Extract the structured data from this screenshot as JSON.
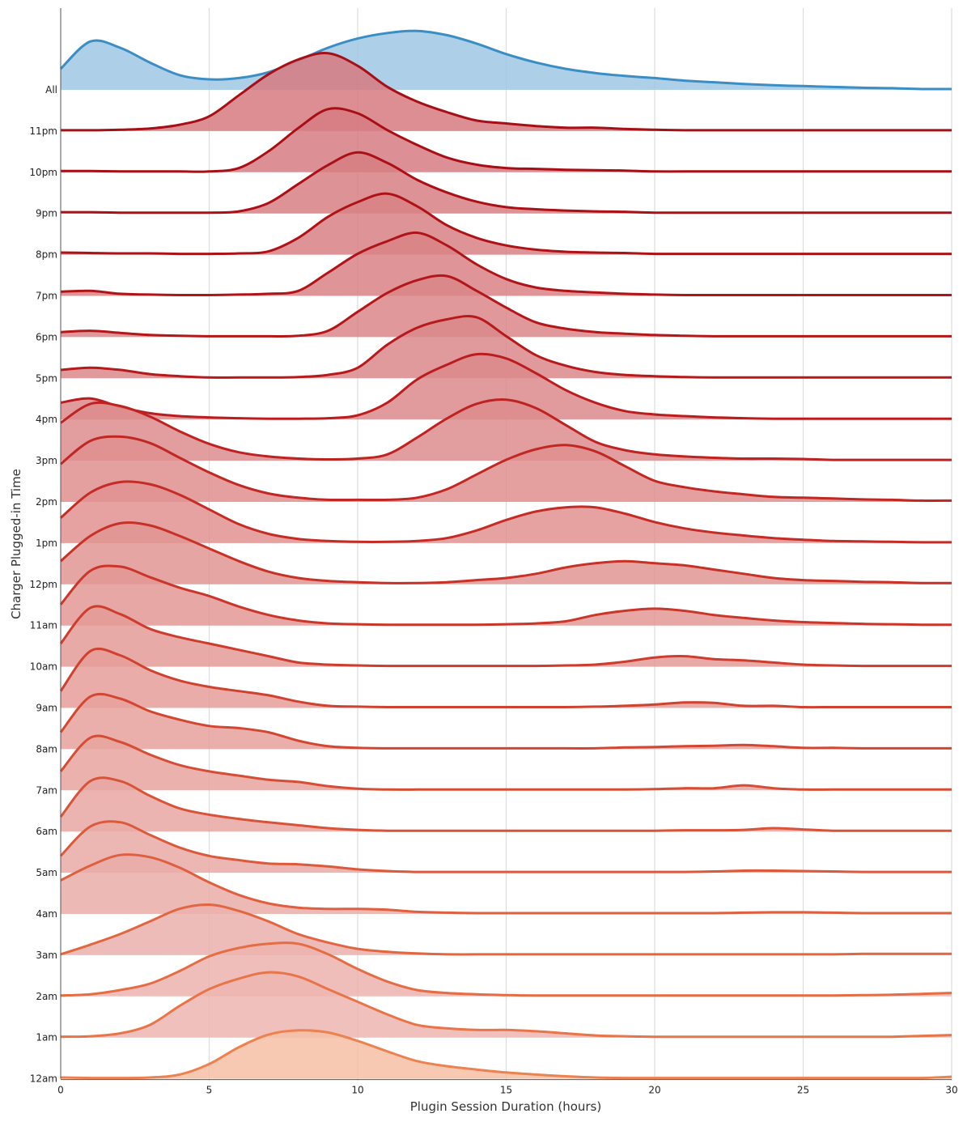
{
  "chart_data": {
    "type": "ridgeline",
    "xlabel": "Plugin Session Duration (hours)",
    "ylabel": "Charger Plugged-in Time",
    "xlim": [
      0,
      30
    ],
    "x_ticks": [
      0,
      5,
      10,
      15,
      20,
      25,
      30
    ],
    "grid": "vertical",
    "x": [
      0,
      1,
      2,
      3,
      4,
      5,
      6,
      7,
      8,
      9,
      10,
      11,
      12,
      13,
      14,
      15,
      16,
      17,
      18,
      19,
      20,
      21,
      22,
      23,
      24,
      25,
      26,
      27,
      28,
      29,
      30
    ],
    "series": [
      {
        "name": "All",
        "color": "#3a8ec4",
        "fill": "#9fc7e3",
        "values": [
          0.5,
          1.15,
          1.0,
          0.65,
          0.35,
          0.25,
          0.28,
          0.42,
          0.7,
          1.0,
          1.22,
          1.35,
          1.4,
          1.3,
          1.1,
          0.85,
          0.65,
          0.5,
          0.4,
          0.33,
          0.28,
          0.22,
          0.18,
          0.14,
          0.11,
          0.09,
          0.07,
          0.05,
          0.04,
          0.02,
          0.02
        ]
      },
      {
        "name": "11pm",
        "color": "#a50f15",
        "fill": "#d67a80",
        "values": [
          0.02,
          0.02,
          0.03,
          0.06,
          0.15,
          0.35,
          0.85,
          1.35,
          1.7,
          1.85,
          1.55,
          1.05,
          0.7,
          0.45,
          0.25,
          0.18,
          0.12,
          0.08,
          0.08,
          0.05,
          0.03,
          0.02,
          0.02,
          0.02,
          0.02,
          0.02,
          0.02,
          0.02,
          0.02,
          0.02,
          0.02
        ]
      },
      {
        "name": "10pm",
        "color": "#a80f15",
        "fill": "#d67d82",
        "values": [
          0.03,
          0.03,
          0.02,
          0.02,
          0.02,
          0.02,
          0.1,
          0.5,
          1.05,
          1.5,
          1.4,
          1.0,
          0.65,
          0.35,
          0.18,
          0.1,
          0.08,
          0.06,
          0.05,
          0.04,
          0.02,
          0.02,
          0.02,
          0.02,
          0.02,
          0.02,
          0.02,
          0.02,
          0.02,
          0.02,
          0.02
        ]
      },
      {
        "name": "9pm",
        "color": "#aa1016",
        "fill": "#d77f83",
        "values": [
          0.03,
          0.03,
          0.02,
          0.02,
          0.02,
          0.02,
          0.05,
          0.25,
          0.7,
          1.15,
          1.45,
          1.2,
          0.8,
          0.5,
          0.28,
          0.15,
          0.1,
          0.07,
          0.05,
          0.04,
          0.02,
          0.02,
          0.02,
          0.02,
          0.02,
          0.02,
          0.02,
          0.02,
          0.02,
          0.02,
          0.02
        ]
      },
      {
        "name": "8pm",
        "color": "#ae1217",
        "fill": "#d88184",
        "values": [
          0.05,
          0.04,
          0.03,
          0.03,
          0.02,
          0.02,
          0.03,
          0.08,
          0.4,
          0.9,
          1.25,
          1.45,
          1.15,
          0.7,
          0.4,
          0.22,
          0.12,
          0.07,
          0.05,
          0.04,
          0.02,
          0.02,
          0.02,
          0.02,
          0.02,
          0.02,
          0.02,
          0.02,
          0.02,
          0.02,
          0.02
        ]
      },
      {
        "name": "7pm",
        "color": "#b11418",
        "fill": "#d98386",
        "values": [
          0.1,
          0.12,
          0.05,
          0.03,
          0.02,
          0.02,
          0.03,
          0.05,
          0.12,
          0.55,
          1.0,
          1.3,
          1.5,
          1.2,
          0.75,
          0.4,
          0.2,
          0.12,
          0.08,
          0.05,
          0.03,
          0.02,
          0.02,
          0.02,
          0.02,
          0.02,
          0.02,
          0.02,
          0.02,
          0.02,
          0.02
        ]
      },
      {
        "name": "6pm",
        "color": "#b4171a",
        "fill": "#da8688",
        "values": [
          0.12,
          0.15,
          0.1,
          0.05,
          0.03,
          0.02,
          0.02,
          0.02,
          0.03,
          0.15,
          0.6,
          1.05,
          1.35,
          1.45,
          1.1,
          0.7,
          0.35,
          0.2,
          0.12,
          0.08,
          0.05,
          0.03,
          0.02,
          0.02,
          0.02,
          0.02,
          0.02,
          0.02,
          0.02,
          0.02,
          0.02
        ]
      },
      {
        "name": "5pm",
        "color": "#b71a1c",
        "fill": "#db888a",
        "values": [
          0.2,
          0.25,
          0.2,
          0.1,
          0.05,
          0.02,
          0.02,
          0.02,
          0.03,
          0.08,
          0.25,
          0.8,
          1.2,
          1.4,
          1.45,
          1.0,
          0.55,
          0.3,
          0.15,
          0.08,
          0.05,
          0.03,
          0.02,
          0.02,
          0.02,
          0.02,
          0.02,
          0.02,
          0.02,
          0.02,
          0.02
        ]
      },
      {
        "name": "4pm",
        "color": "#bb1d1f",
        "fill": "#dc8a8b",
        "values": [
          0.4,
          0.5,
          0.3,
          0.15,
          0.08,
          0.05,
          0.03,
          0.02,
          0.02,
          0.03,
          0.1,
          0.4,
          0.95,
          1.3,
          1.55,
          1.45,
          1.1,
          0.7,
          0.4,
          0.2,
          0.12,
          0.08,
          0.05,
          0.03,
          0.02,
          0.02,
          0.02,
          0.02,
          0.02,
          0.02,
          0.02
        ]
      },
      {
        "name": "3pm",
        "color": "#be2221",
        "fill": "#dd8c8d",
        "values": [
          0.9,
          1.35,
          1.3,
          1.05,
          0.7,
          0.4,
          0.2,
          0.1,
          0.05,
          0.03,
          0.05,
          0.15,
          0.55,
          1.0,
          1.35,
          1.45,
          1.25,
          0.85,
          0.45,
          0.25,
          0.15,
          0.1,
          0.07,
          0.05,
          0.05,
          0.04,
          0.02,
          0.02,
          0.02,
          0.02,
          0.02
        ]
      },
      {
        "name": "2pm",
        "color": "#c12723",
        "fill": "#df8f8e",
        "values": [
          0.9,
          1.45,
          1.55,
          1.4,
          1.05,
          0.7,
          0.4,
          0.2,
          0.1,
          0.05,
          0.05,
          0.05,
          0.1,
          0.3,
          0.65,
          1.0,
          1.25,
          1.35,
          1.2,
          0.85,
          0.5,
          0.35,
          0.25,
          0.18,
          0.12,
          0.1,
          0.08,
          0.06,
          0.05,
          0.03,
          0.03
        ]
      },
      {
        "name": "1pm",
        "color": "#c42c25",
        "fill": "#e09290",
        "values": [
          0.6,
          1.2,
          1.45,
          1.4,
          1.15,
          0.8,
          0.45,
          0.22,
          0.1,
          0.05,
          0.03,
          0.03,
          0.05,
          0.12,
          0.3,
          0.55,
          0.75,
          0.85,
          0.85,
          0.7,
          0.5,
          0.35,
          0.25,
          0.18,
          0.12,
          0.08,
          0.05,
          0.04,
          0.03,
          0.02,
          0.02
        ]
      },
      {
        "name": "12pm",
        "color": "#c73127",
        "fill": "#e19592",
        "values": [
          0.55,
          1.15,
          1.45,
          1.4,
          1.15,
          0.85,
          0.55,
          0.3,
          0.15,
          0.08,
          0.05,
          0.03,
          0.03,
          0.05,
          0.1,
          0.15,
          0.25,
          0.4,
          0.5,
          0.55,
          0.5,
          0.45,
          0.35,
          0.25,
          0.15,
          0.1,
          0.08,
          0.06,
          0.05,
          0.03,
          0.03
        ]
      },
      {
        "name": "11am",
        "color": "#ca3629",
        "fill": "#e39895",
        "values": [
          0.5,
          1.3,
          1.4,
          1.15,
          0.9,
          0.7,
          0.45,
          0.25,
          0.12,
          0.05,
          0.03,
          0.02,
          0.02,
          0.02,
          0.02,
          0.03,
          0.05,
          0.1,
          0.25,
          0.35,
          0.4,
          0.35,
          0.25,
          0.18,
          0.12,
          0.08,
          0.06,
          0.04,
          0.03,
          0.02,
          0.02
        ]
      },
      {
        "name": "10am",
        "color": "#cd3c2c",
        "fill": "#e49b97",
        "values": [
          0.55,
          1.4,
          1.25,
          0.9,
          0.7,
          0.55,
          0.4,
          0.25,
          0.1,
          0.05,
          0.03,
          0.02,
          0.02,
          0.02,
          0.02,
          0.02,
          0.02,
          0.03,
          0.05,
          0.12,
          0.22,
          0.25,
          0.18,
          0.15,
          0.1,
          0.05,
          0.03,
          0.02,
          0.02,
          0.02,
          0.02
        ]
      },
      {
        "name": "9am",
        "color": "#d0412f",
        "fill": "#e59e99",
        "values": [
          0.4,
          1.35,
          1.25,
          0.9,
          0.65,
          0.5,
          0.4,
          0.3,
          0.15,
          0.05,
          0.03,
          0.02,
          0.02,
          0.02,
          0.02,
          0.02,
          0.02,
          0.02,
          0.03,
          0.05,
          0.08,
          0.13,
          0.12,
          0.05,
          0.05,
          0.02,
          0.02,
          0.02,
          0.02,
          0.02,
          0.02
        ]
      },
      {
        "name": "8am",
        "color": "#d34732",
        "fill": "#e6a19c",
        "values": [
          0.4,
          1.25,
          1.2,
          0.9,
          0.7,
          0.55,
          0.5,
          0.4,
          0.2,
          0.07,
          0.03,
          0.02,
          0.02,
          0.02,
          0.02,
          0.02,
          0.02,
          0.02,
          0.02,
          0.04,
          0.05,
          0.07,
          0.08,
          0.1,
          0.07,
          0.03,
          0.03,
          0.02,
          0.02,
          0.02,
          0.02
        ]
      },
      {
        "name": "7am",
        "color": "#d64d35",
        "fill": "#e7a49f",
        "values": [
          0.45,
          1.25,
          1.15,
          0.85,
          0.6,
          0.45,
          0.35,
          0.25,
          0.2,
          0.1,
          0.04,
          0.02,
          0.02,
          0.02,
          0.02,
          0.02,
          0.02,
          0.02,
          0.02,
          0.02,
          0.03,
          0.05,
          0.05,
          0.12,
          0.05,
          0.02,
          0.02,
          0.02,
          0.02,
          0.02,
          0.02
        ]
      },
      {
        "name": "6am",
        "color": "#d95338",
        "fill": "#e8a7a2",
        "values": [
          0.35,
          1.2,
          1.2,
          0.85,
          0.55,
          0.4,
          0.3,
          0.22,
          0.15,
          0.08,
          0.04,
          0.02,
          0.02,
          0.02,
          0.02,
          0.02,
          0.02,
          0.02,
          0.02,
          0.02,
          0.02,
          0.03,
          0.03,
          0.04,
          0.08,
          0.05,
          0.02,
          0.02,
          0.02,
          0.02,
          0.02
        ]
      },
      {
        "name": "5am",
        "color": "#dc593b",
        "fill": "#e9aaa5",
        "values": [
          0.4,
          1.1,
          1.2,
          0.9,
          0.6,
          0.4,
          0.3,
          0.22,
          0.2,
          0.15,
          0.08,
          0.04,
          0.02,
          0.02,
          0.02,
          0.02,
          0.02,
          0.02,
          0.02,
          0.02,
          0.02,
          0.02,
          0.03,
          0.05,
          0.05,
          0.04,
          0.03,
          0.02,
          0.02,
          0.02,
          0.02
        ]
      },
      {
        "name": "4am",
        "color": "#df5f3e",
        "fill": "#eaada8",
        "values": [
          0.8,
          1.15,
          1.4,
          1.35,
          1.1,
          0.75,
          0.45,
          0.25,
          0.15,
          0.12,
          0.12,
          0.1,
          0.05,
          0.03,
          0.02,
          0.02,
          0.02,
          0.02,
          0.02,
          0.02,
          0.02,
          0.02,
          0.02,
          0.03,
          0.04,
          0.04,
          0.03,
          0.02,
          0.02,
          0.02,
          0.02
        ]
      },
      {
        "name": "3am",
        "color": "#e26641",
        "fill": "#ebb0ab",
        "values": [
          0.02,
          0.25,
          0.5,
          0.8,
          1.1,
          1.2,
          1.05,
          0.8,
          0.5,
          0.3,
          0.15,
          0.08,
          0.04,
          0.02,
          0.02,
          0.02,
          0.02,
          0.02,
          0.02,
          0.02,
          0.02,
          0.02,
          0.02,
          0.02,
          0.02,
          0.02,
          0.02,
          0.03,
          0.03,
          0.03,
          0.03
        ]
      },
      {
        "name": "2am",
        "color": "#e56d44",
        "fill": "#ecb3ae",
        "values": [
          0.02,
          0.05,
          0.15,
          0.3,
          0.6,
          0.95,
          1.15,
          1.25,
          1.25,
          1.0,
          0.65,
          0.35,
          0.15,
          0.08,
          0.05,
          0.03,
          0.02,
          0.02,
          0.02,
          0.02,
          0.02,
          0.02,
          0.02,
          0.02,
          0.02,
          0.02,
          0.02,
          0.03,
          0.04,
          0.06,
          0.08
        ]
      },
      {
        "name": "1am",
        "color": "#e87448",
        "fill": "#edb6b0",
        "values": [
          0.02,
          0.03,
          0.1,
          0.3,
          0.75,
          1.15,
          1.4,
          1.55,
          1.45,
          1.15,
          0.85,
          0.55,
          0.3,
          0.22,
          0.18,
          0.18,
          0.15,
          0.1,
          0.05,
          0.03,
          0.02,
          0.02,
          0.02,
          0.02,
          0.02,
          0.02,
          0.02,
          0.02,
          0.02,
          0.04,
          0.06
        ]
      },
      {
        "name": "12am",
        "color": "#ec8250",
        "fill": "#f6c0a6",
        "values": [
          0.03,
          0.02,
          0.02,
          0.03,
          0.1,
          0.35,
          0.75,
          1.05,
          1.15,
          1.1,
          0.9,
          0.65,
          0.42,
          0.3,
          0.22,
          0.15,
          0.1,
          0.06,
          0.03,
          0.02,
          0.02,
          0.02,
          0.02,
          0.02,
          0.02,
          0.02,
          0.02,
          0.02,
          0.02,
          0.02,
          0.05
        ]
      }
    ]
  }
}
